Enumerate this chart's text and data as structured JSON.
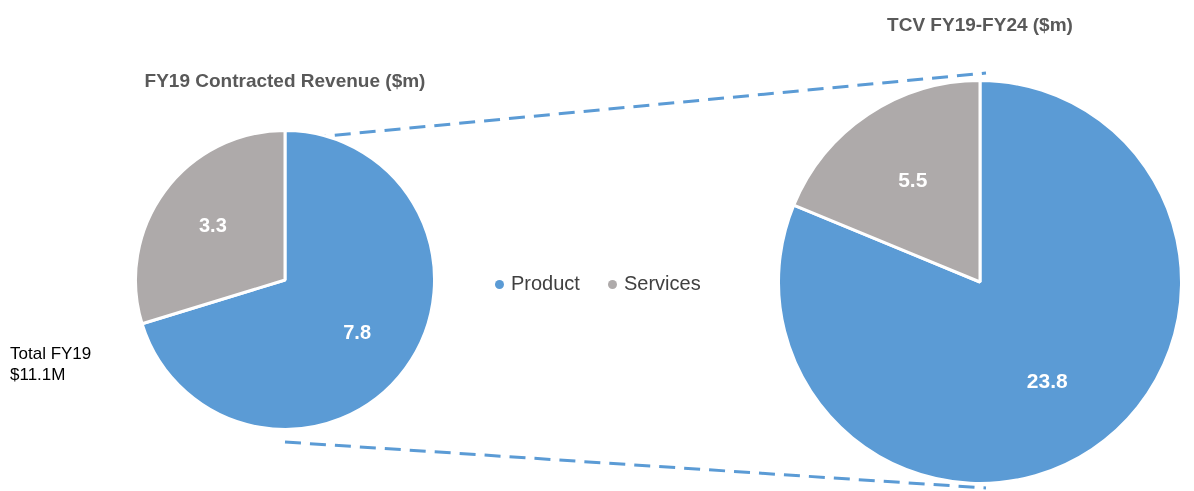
{
  "chart_data": [
    {
      "type": "pie",
      "title": "FY19 Contracted Revenue ($m)",
      "categories": [
        "Product",
        "Services"
      ],
      "values": [
        7.8,
        3.3
      ],
      "colors": [
        "#5b9bd5",
        "#aeaaaa"
      ],
      "data_labels": true,
      "legend": "right",
      "annotations": [
        "Total FY19\n$11.1M"
      ]
    },
    {
      "type": "pie",
      "title": "TCV FY19-FY24 ($m)",
      "categories": [
        null,
        null
      ],
      "values": [
        23.8,
        5.5
      ],
      "colors": [
        "#5b9bd5",
        "#aeaaaa"
      ],
      "data_labels": true
    }
  ]
}
